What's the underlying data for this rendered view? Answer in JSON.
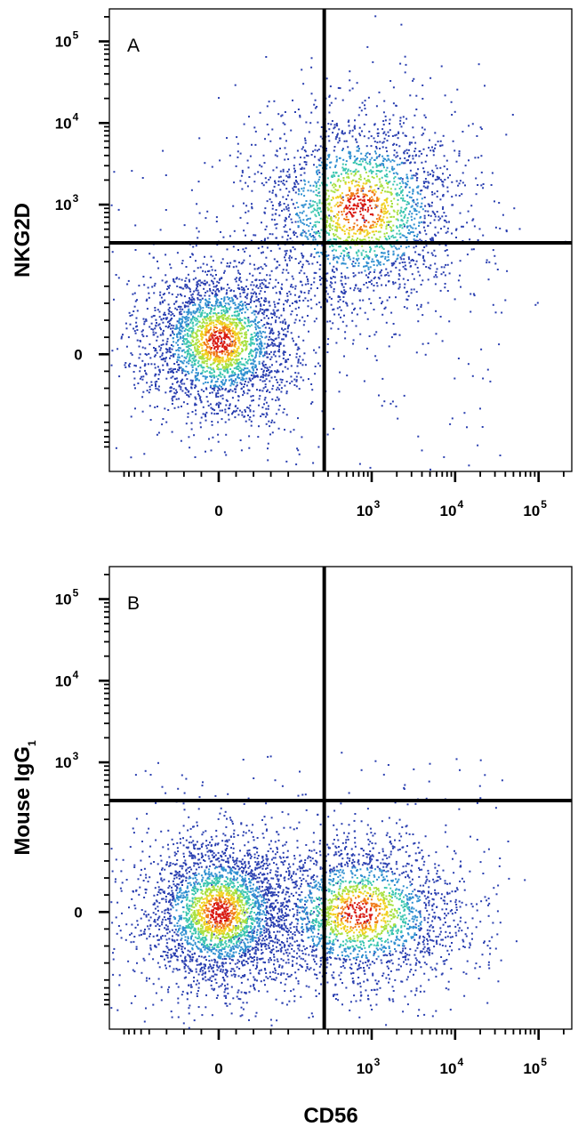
{
  "chart_data": [
    {
      "type": "scatter",
      "panel_label": "A",
      "xlabel": "CD56",
      "ylabel": "NKG2D",
      "ylabel_sub": "",
      "x_ticks": [
        {
          "base": "0",
          "exp": ""
        },
        {
          "base": "10",
          "exp": "3"
        },
        {
          "base": "10",
          "exp": "4"
        },
        {
          "base": "10",
          "exp": "5"
        }
      ],
      "y_ticks": [
        {
          "base": "0",
          "exp": ""
        },
        {
          "base": "10",
          "exp": "3"
        },
        {
          "base": "10",
          "exp": "4"
        },
        {
          "base": "10",
          "exp": "5"
        }
      ],
      "scale": "biexponential",
      "xlim": [
        -300,
        250000
      ],
      "ylim": [
        -400,
        250000
      ],
      "quadrant_gate": {
        "x": 270,
        "y": 340
      },
      "populations": [
        {
          "name": "CD56- NKG2D-",
          "center": [
            0,
            20
          ],
          "count": 2600
        },
        {
          "name": "CD56+ NKG2D+",
          "center": [
            700,
            900
          ],
          "count": 2300
        }
      ],
      "density_colors": [
        "#2a3fb0",
        "#2f8fd0",
        "#3cc6b0",
        "#a8e040",
        "#f0d020",
        "#f07a18",
        "#d81a12"
      ]
    },
    {
      "type": "scatter",
      "panel_label": "B",
      "xlabel": "CD56",
      "ylabel": "Mouse IgG",
      "ylabel_sub": "1",
      "x_ticks": [
        {
          "base": "0",
          "exp": ""
        },
        {
          "base": "10",
          "exp": "3"
        },
        {
          "base": "10",
          "exp": "4"
        },
        {
          "base": "10",
          "exp": "5"
        }
      ],
      "y_ticks": [
        {
          "base": "0",
          "exp": ""
        },
        {
          "base": "10",
          "exp": "3"
        },
        {
          "base": "10",
          "exp": "4"
        },
        {
          "base": "10",
          "exp": "5"
        }
      ],
      "scale": "biexponential",
      "xlim": [
        -300,
        250000
      ],
      "ylim": [
        -400,
        250000
      ],
      "quadrant_gate": {
        "x": 270,
        "y": 340
      },
      "populations": [
        {
          "name": "CD56- IgG1-",
          "center": [
            0,
            0
          ],
          "count": 2800
        },
        {
          "name": "CD56+ IgG1-",
          "center": [
            700,
            0
          ],
          "count": 2200
        }
      ],
      "density_colors": [
        "#2a3fb0",
        "#2f8fd0",
        "#3cc6b0",
        "#a8e040",
        "#f0d020",
        "#f07a18",
        "#d81a12"
      ]
    }
  ],
  "figure": {
    "shared_xlabel": "CD56"
  }
}
